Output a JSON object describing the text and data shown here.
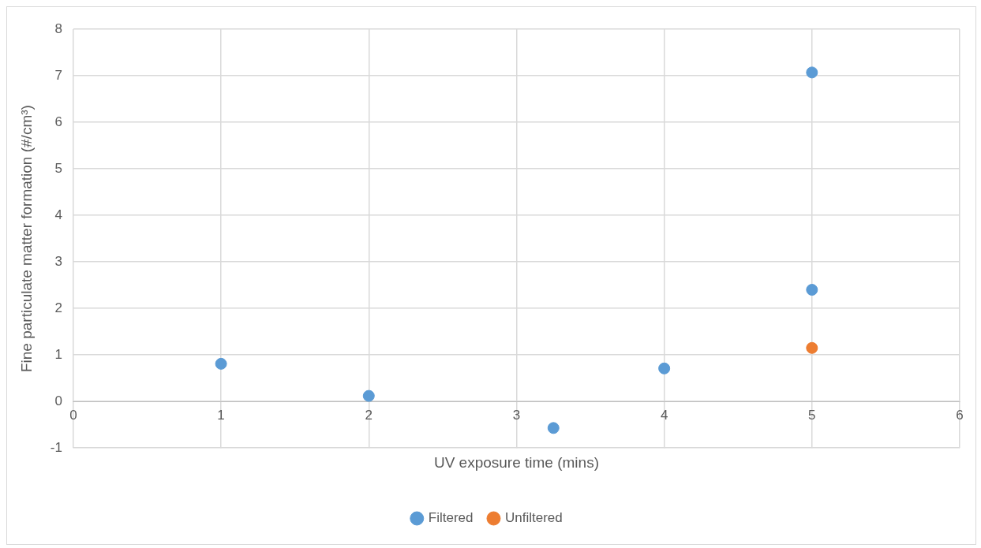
{
  "chart_data": {
    "type": "scatter",
    "xlabel": "UV exposure time (mins)",
    "ylabel": "Fine particulate matter formation (#/cm³)",
    "xlim": [
      0,
      6
    ],
    "xticks": [
      0,
      1,
      2,
      3,
      4,
      5,
      6
    ],
    "ylim": [
      -1,
      8
    ],
    "yticks": [
      -1,
      0,
      1,
      2,
      3,
      4,
      5,
      6,
      7,
      8
    ],
    "grid": true,
    "legend": "bottom",
    "marker": "circle",
    "series": [
      {
        "name": "Filtered",
        "color": "#5b9bd5",
        "x": [
          1,
          2,
          3.25,
          4,
          5,
          5
        ],
        "values": [
          0.81,
          0.12,
          -0.57,
          0.71,
          7.07,
          2.4
        ]
      },
      {
        "name": "Unfiltered",
        "color": "#ed7d31",
        "x": [
          5
        ],
        "values": [
          1.15
        ]
      }
    ]
  }
}
